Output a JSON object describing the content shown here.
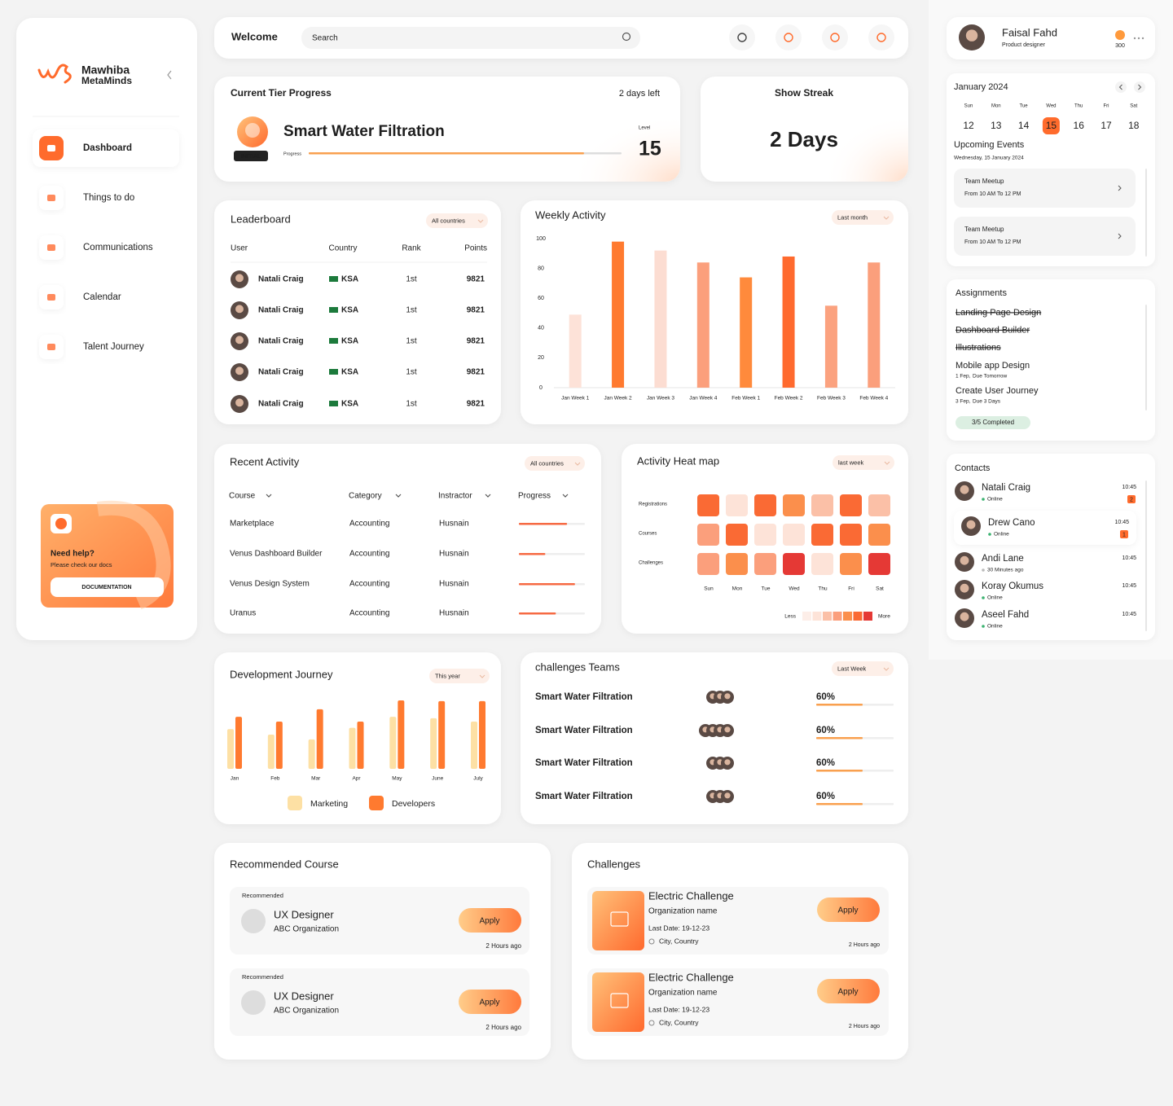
{
  "sidebar": {
    "brand": [
      "Mawhiba",
      "MetaMinds"
    ],
    "nav": [
      "Dashboard",
      "Things to do",
      "Communications",
      "Calendar",
      "Talent Journey"
    ],
    "active": 0,
    "help": {
      "title": "Need help?",
      "subtitle": "Please check our docs",
      "button": "DOCUMENTATION"
    }
  },
  "topbar": {
    "title": "Welcome",
    "search": "Search"
  },
  "tier": {
    "title": "Current Tier Progress",
    "days_left": "2 days left",
    "name": "Smart Water Filtration",
    "badge": "INITIAL",
    "progress_label": "Progress",
    "progress": 88,
    "level_label": "Level",
    "level": 15
  },
  "streak": {
    "title": "Show Streak",
    "value": "2 Days"
  },
  "leaderboard": {
    "title": "Leaderboard",
    "filter": "All countries",
    "columns": [
      "User",
      "Country",
      "Rank",
      "Points"
    ],
    "rows": [
      {
        "user": "Natali Craig",
        "country": "KSA",
        "rank": "1st",
        "points": 9821
      },
      {
        "user": "Natali Craig",
        "country": "KSA",
        "rank": "1st",
        "points": 9821
      },
      {
        "user": "Natali Craig",
        "country": "KSA",
        "rank": "1st",
        "points": 9821
      },
      {
        "user": "Natali Craig",
        "country": "KSA",
        "rank": "1st",
        "points": 9821
      },
      {
        "user": "Natali Craig",
        "country": "KSA",
        "rank": "1st",
        "points": 9821
      }
    ]
  },
  "weekly_activity": {
    "type": "bar",
    "title": "Weekly Activity",
    "filter": "Last month",
    "categories": [
      "Jan Week 1",
      "Jan Week 2",
      "Jan Week 3",
      "Jan Week 4",
      "Feb Week 1",
      "Feb Week 2",
      "Feb Week 3",
      "Feb Week 4"
    ],
    "values": [
      49,
      98,
      92,
      84,
      74,
      88,
      55,
      84
    ],
    "colors": [
      "#fde2d8",
      "#ff7a2f",
      "#fcddd2",
      "#fb9f7c",
      "#ff8a3c",
      "#ff6a2e",
      "#fba27f",
      "#fb9f7c"
    ],
    "ylim": [
      0,
      100
    ],
    "yticks": [
      0,
      20,
      40,
      60,
      80,
      100
    ]
  },
  "recent_activity": {
    "title": "Recent Activity",
    "filter": "All countries",
    "columns": [
      "Course",
      "Category",
      "Instractor",
      "Progress"
    ],
    "rows": [
      {
        "course": "Marketplace",
        "category": "Accounting",
        "instructor": "Husnain",
        "progress": 73
      },
      {
        "course": "Venus Dashboard Builder",
        "category": "Accounting",
        "instructor": "Husnain",
        "progress": 40
      },
      {
        "course": "Venus Design System",
        "category": "Accounting",
        "instructor": "Husnain",
        "progress": 85
      },
      {
        "course": "Uranus",
        "category": "Accounting",
        "instructor": "Husnain",
        "progress": 56
      }
    ]
  },
  "heatmap": {
    "type": "heatmap",
    "title": "Activity Heat map",
    "filter": "last week",
    "rows": [
      "Registrations",
      "Courses",
      "Challenges"
    ],
    "columns": [
      "Sun",
      "Mon",
      "Tue",
      "Wed",
      "Thu",
      "Fri",
      "Sat"
    ],
    "values": [
      [
        5,
        1,
        5,
        4,
        2,
        5,
        2
      ],
      [
        3,
        5,
        1,
        1,
        5,
        5,
        4
      ],
      [
        3,
        4,
        3,
        6,
        1,
        4,
        6
      ]
    ],
    "palette": [
      "#fdeee8",
      "#fde3d8",
      "#fbc0a7",
      "#fb9f7c",
      "#fb8f4c",
      "#fa6a34",
      "#e53935"
    ],
    "legend": [
      "Less",
      "More"
    ]
  },
  "development_journey": {
    "type": "bar",
    "title": "Development Journey",
    "filter": "This year",
    "categories": [
      "Jan",
      "Feb",
      "Mar",
      "Apr",
      "May",
      "June",
      "July"
    ],
    "series": [
      {
        "name": "Marketing",
        "color": "#fde0a4",
        "values": [
          58,
          50,
          43,
          60,
          76,
          74,
          69
        ]
      },
      {
        "name": "Developers",
        "color": "#ff7a2f",
        "values": [
          76,
          69,
          87,
          69,
          100,
          99,
          99
        ]
      }
    ],
    "ylim": [
      0,
      100
    ]
  },
  "challenge_teams": {
    "title": "challenges Teams",
    "filter": "Last Week",
    "rows": [
      {
        "name": "Smart Water Filtration",
        "members": 3,
        "value": 60,
        "value_label": "60%"
      },
      {
        "name": "Smart Water Filtration",
        "members": 4,
        "value": 60,
        "value_label": "60%"
      },
      {
        "name": "Smart Water Filtration",
        "members": 3,
        "value": 60,
        "value_label": "60%"
      },
      {
        "name": "Smart Water Filtration",
        "members": 3,
        "value": 60,
        "value_label": "60%"
      }
    ]
  },
  "recommended": {
    "title": "Recommended Course",
    "items": [
      {
        "tag": "Recommended",
        "title": "UX Designer",
        "org": "ABC Organization",
        "button": "Apply",
        "time": "2 Hours ago"
      },
      {
        "tag": "Recommended",
        "title": "UX Designer",
        "org": "ABC Organization",
        "button": "Apply",
        "time": "2 Hours ago"
      }
    ]
  },
  "challenges": {
    "title": "Challenges",
    "items": [
      {
        "title": "Electric Challenge",
        "org": "Organization name",
        "date": "Last Date: 19-12-23",
        "location": "City, Country",
        "button": "Apply",
        "time": "2 Hours ago"
      },
      {
        "title": "Electric Challenge",
        "org": "Organization name",
        "date": "Last Date: 19-12-23",
        "location": "City, Country",
        "button": "Apply",
        "time": "2 Hours ago"
      }
    ]
  },
  "profile": {
    "name": "Faisal Fahd",
    "role": "Product designer",
    "points": 300
  },
  "calendar": {
    "month": "January 2024",
    "days": [
      {
        "name": "Sun",
        "date": 12
      },
      {
        "name": "Mon",
        "date": 13
      },
      {
        "name": "Tue",
        "date": 14
      },
      {
        "name": "Wed",
        "date": 15
      },
      {
        "name": "Thu",
        "date": 16
      },
      {
        "name": "Fri",
        "date": 17
      },
      {
        "name": "Sat",
        "date": 18
      }
    ],
    "selected": 3,
    "upcoming_title": "Upcoming Events",
    "selected_date": "Wednesday, 15 January 2024",
    "events": [
      {
        "title": "Team Meetup",
        "time": "From 10 AM To 12 PM"
      },
      {
        "title": "Team Meetup",
        "time": "From 10 AM To 12 PM"
      }
    ]
  },
  "assignments": {
    "title": "Assignments",
    "done": [
      "Landing Page Design",
      "Dashboard Builder",
      "Illustrations"
    ],
    "pending": [
      {
        "title": "Mobile app Design",
        "date": "1 Fep,",
        "due": "Due Tomorrow"
      },
      {
        "title": "Create User Journey",
        "date": "3 Fep,",
        "due": "Due 3 Days"
      }
    ],
    "status": "3/5 Completed"
  },
  "contacts": {
    "title": "Contacts",
    "selected": 1,
    "items": [
      {
        "name": "Natali Craig",
        "status": "Online",
        "time": "10:45",
        "unread": 2
      },
      {
        "name": "Drew Cano",
        "status": "Online",
        "time": "10:45",
        "unread": 1
      },
      {
        "name": "Andi Lane",
        "status": "30 Minutes ago",
        "time": "10:45"
      },
      {
        "name": "Koray Okumus",
        "status": "Online",
        "time": "10:45"
      },
      {
        "name": "Aseel Fahd",
        "status": "Online",
        "time": "10:45"
      }
    ]
  }
}
